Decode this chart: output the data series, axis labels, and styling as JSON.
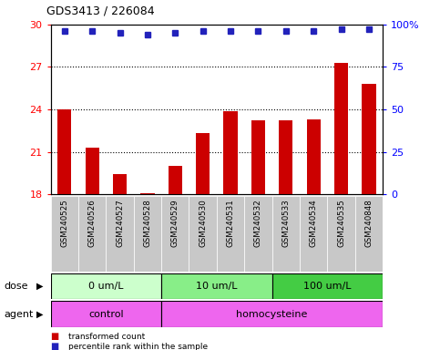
{
  "title": "GDS3413 / 226084",
  "samples": [
    "GSM240525",
    "GSM240526",
    "GSM240527",
    "GSM240528",
    "GSM240529",
    "GSM240530",
    "GSM240531",
    "GSM240532",
    "GSM240533",
    "GSM240534",
    "GSM240535",
    "GSM240848"
  ],
  "bar_values": [
    24.0,
    21.3,
    19.4,
    18.05,
    20.0,
    22.3,
    23.9,
    23.2,
    23.2,
    23.3,
    27.3,
    25.8
  ],
  "percentile_values": [
    96,
    96,
    95,
    94,
    95,
    96,
    96,
    96,
    96,
    96,
    97,
    97
  ],
  "ylim_left": [
    18,
    30
  ],
  "yticks_left": [
    18,
    21,
    24,
    27,
    30
  ],
  "ylim_right": [
    0,
    100
  ],
  "yticks_right": [
    0,
    25,
    50,
    75,
    100
  ],
  "bar_color": "#cc0000",
  "percentile_color": "#2222bb",
  "bar_width": 0.5,
  "dose_groups": [
    {
      "label": "0 um/L",
      "start": 0,
      "end": 4,
      "color": "#ccffcc"
    },
    {
      "label": "10 um/L",
      "start": 4,
      "end": 8,
      "color": "#88ee88"
    },
    {
      "label": "100 um/L",
      "start": 8,
      "end": 12,
      "color": "#44cc44"
    }
  ],
  "agent_groups": [
    {
      "label": "control",
      "start": 0,
      "end": 4,
      "color": "#ee66ee"
    },
    {
      "label": "homocysteine",
      "start": 4,
      "end": 12,
      "color": "#ee66ee"
    }
  ],
  "dose_label": "dose",
  "agent_label": "agent",
  "legend_bar_label": "transformed count",
  "legend_dot_label": "percentile rank within the sample",
  "tick_area_color": "#c8c8c8",
  "grid_yticks": [
    21,
    24,
    27
  ]
}
